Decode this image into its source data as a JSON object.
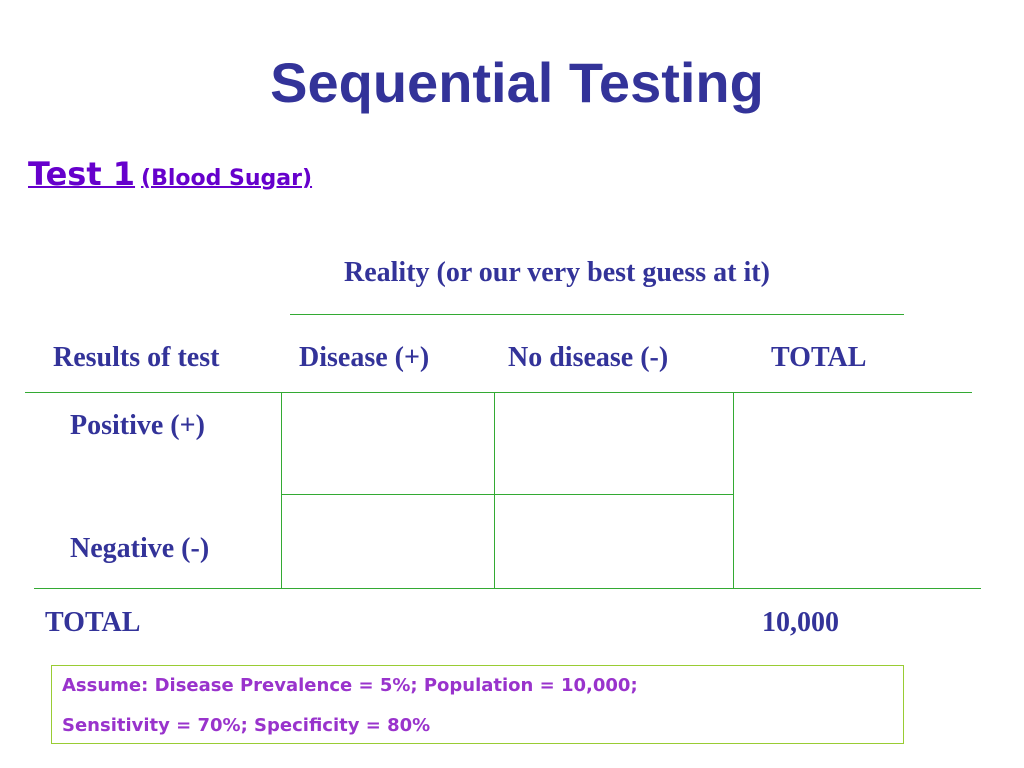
{
  "slide": {
    "title": "Sequential Testing",
    "subtitle_main": "Test 1",
    "subtitle_paren": "(Blood Sugar)"
  },
  "table": {
    "reality_header": "Reality (or our very best guess at it)",
    "row_header_label": "Results of test",
    "columns": [
      "Disease (+)",
      "No disease (-)",
      "TOTAL"
    ],
    "rows": [
      "Positive (+)",
      "Negative (-)"
    ],
    "total_row_label": "TOTAL",
    "total_value": "10,000"
  },
  "assumptions": {
    "line1": "Assume: Disease Prevalence = 5%; Population = 10,000;",
    "line2": "Sensitivity = 70%; Specificity = 80%"
  },
  "colors": {
    "title": "#333399",
    "subtitle": "#6600cc",
    "rules": "#33aa33",
    "assume_text": "#9933cc",
    "assume_border": "#99cc33"
  }
}
